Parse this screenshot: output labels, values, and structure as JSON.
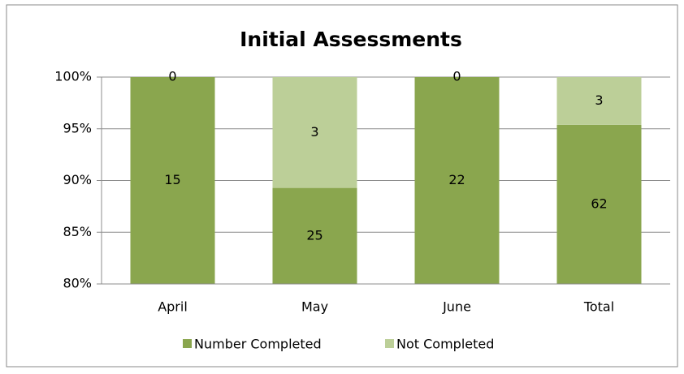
{
  "chart_data": {
    "type": "bar",
    "stack": "percent",
    "title": "Initial Assessments",
    "categories": [
      "April",
      "May",
      "June",
      "Total"
    ],
    "series": [
      {
        "name": "Number Completed",
        "color": "#8aa64e",
        "values": [
          15,
          25,
          22,
          62
        ]
      },
      {
        "name": "Not Completed",
        "color": "#bccf98",
        "values": [
          0,
          3,
          0,
          3
        ]
      }
    ],
    "ylim": [
      80,
      100
    ],
    "yticks": [
      {
        "value": 80,
        "label": "80%"
      },
      {
        "value": 85,
        "label": "85%"
      },
      {
        "value": 90,
        "label": "90%"
      },
      {
        "value": 95,
        "label": "95%"
      },
      {
        "value": 100,
        "label": "100%"
      }
    ],
    "grid": true,
    "legend": "bottom"
  }
}
